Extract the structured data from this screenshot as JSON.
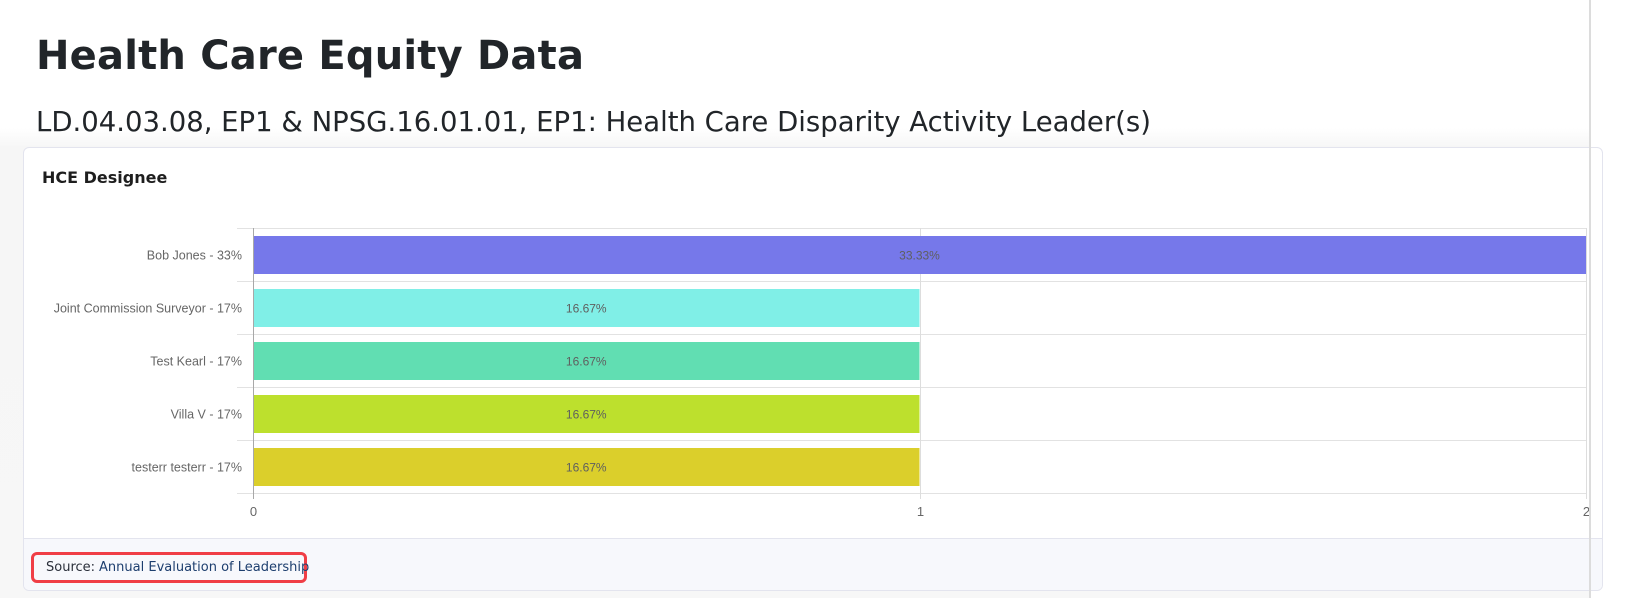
{
  "page": {
    "title": "Health Care Equity Data",
    "subtitle": "LD.04.03.08, EP1 & NPSG.16.01.01, EP1: Health Care Disparity Activity Leader(s)"
  },
  "card": {
    "title": "HCE Designee",
    "footer": {
      "source_label": "Source:",
      "source_link": "Annual Evaluation of Leadership"
    }
  },
  "colors": {
    "highlight_border": "#f03e46",
    "link": "#1d3e6e"
  },
  "chart_data": {
    "type": "bar",
    "orientation": "horizontal",
    "title": "HCE Designee",
    "xlabel": "",
    "ylabel": "",
    "categories": [
      "Bob Jones - 33%",
      "Joint Commission Surveyor - 17%",
      "Test Kearl - 17%",
      "Villa V - 17%",
      "testerr testerr - 17%"
    ],
    "values": [
      2,
      1,
      1,
      1,
      1
    ],
    "data_labels": [
      "33.33%",
      "16.67%",
      "16.67%",
      "16.67%",
      "16.67%"
    ],
    "colors": [
      "#7678ea",
      "#80efe7",
      "#61deb2",
      "#bde02d",
      "#dbcf2b"
    ],
    "xlim": [
      0,
      2
    ],
    "xticks": [
      "0",
      "1",
      "2"
    ],
    "grid": true,
    "legend": "none"
  }
}
